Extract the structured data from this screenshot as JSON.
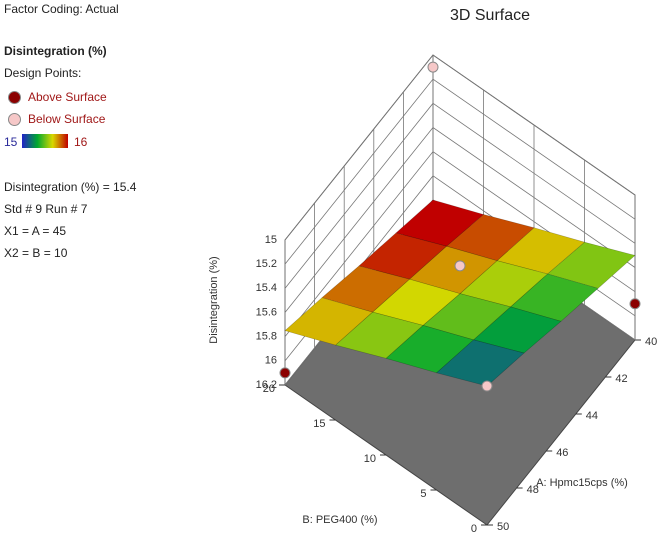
{
  "panel": {
    "factor_coding": "Factor Coding: Actual",
    "response": "Disintegration (%)",
    "design_points_label": "Design Points:",
    "above": "Above Surface",
    "below": "Below Surface",
    "scale_min": "15",
    "scale_max": "16",
    "readout": [
      "Disintegration (%) = 15.4",
      "Std # 9 Run # 7",
      "X1 = A = 45",
      "X2 = B = 10"
    ]
  },
  "chart_data": {
    "type": "surface",
    "title": "3D Surface",
    "xlabel": "A: Hpmc15cps (%)",
    "ylabel": "B: PEG400 (%)",
    "zlabel": "Disintegration (%)",
    "xlim": [
      40,
      50
    ],
    "xticks": [
      40,
      42,
      44,
      46,
      48,
      50
    ],
    "ylim": [
      0,
      20
    ],
    "yticks": [
      0,
      5,
      10,
      15,
      20
    ],
    "zlim": [
      15,
      16.2
    ],
    "zticks": [
      15,
      15.2,
      15.4,
      15.6,
      15.8,
      16,
      16.2
    ],
    "z_reversed": true,
    "colorscale": [
      "#2222c8",
      "#00a830",
      "#d8d800",
      "#c00000"
    ],
    "color_range": [
      15,
      16
    ],
    "x": [
      40,
      42.5,
      45,
      47.5,
      50
    ],
    "y": [
      0,
      5,
      10,
      15,
      20
    ],
    "z": [
      [
        15.5,
        15.39,
        15.28,
        15.16,
        15.05
      ],
      [
        15.68,
        15.56,
        15.45,
        15.34,
        15.23
      ],
      [
        15.85,
        15.74,
        15.63,
        15.51,
        15.4
      ],
      [
        16.03,
        15.91,
        15.8,
        15.69,
        15.58
      ],
      [
        16.2,
        16.09,
        15.98,
        15.86,
        15.75
      ]
    ],
    "above_color": "#8b0000",
    "below_color": "#f6c8c8",
    "design_points": [
      {
        "a": 50,
        "b": 20,
        "z": 16.1,
        "position": "above"
      },
      {
        "a": 40,
        "b": 0,
        "z": 15.9,
        "position": "above"
      },
      {
        "a": 50,
        "b": 0,
        "z": 15.05,
        "position": "below"
      },
      {
        "a": 40,
        "b": 20,
        "z": 15.1,
        "position": "below"
      },
      {
        "a": 45,
        "b": 10,
        "z": 15.4,
        "position": "below"
      }
    ]
  }
}
